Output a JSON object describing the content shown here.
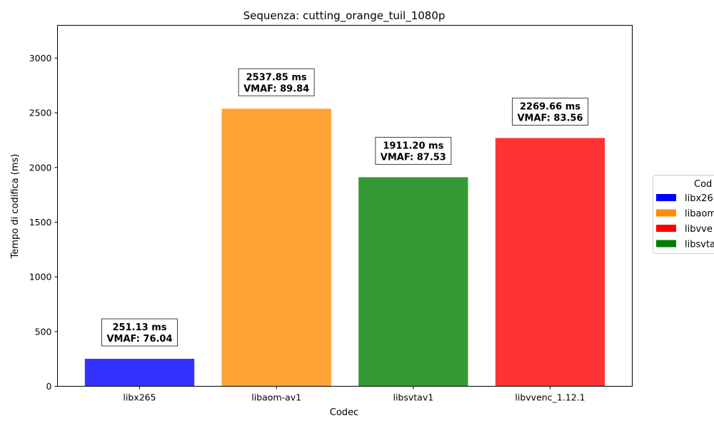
{
  "chart_data": {
    "type": "bar",
    "title": "Sequenza: cutting_orange_tuil_1080p",
    "xlabel": "Codec",
    "ylabel": "Tempo di codifica (ms)",
    "ylim": [
      0,
      3300
    ],
    "yticks": [
      0,
      500,
      1000,
      1500,
      2000,
      2500,
      3000
    ],
    "categories": [
      "libx265",
      "libaom-av1",
      "libsvtav1",
      "libvvenc_1.12.1"
    ],
    "values": [
      251.13,
      2537.85,
      1911.2,
      2269.66
    ],
    "value_labels": [
      "251.13 ms",
      "2537.85 ms",
      "1911.20 ms",
      "2269.66 ms"
    ],
    "vmaf_labels": [
      "VMAF: 76.04",
      "VMAF: 89.84",
      "VMAF: 87.53",
      "VMAF: 83.56"
    ],
    "bar_colors": [
      "#3333ff",
      "#ffa333",
      "#339933",
      "#ff3333"
    ],
    "grid": false,
    "legend": {
      "placement": "right",
      "title": "Cod",
      "entries": [
        {
          "label": "libx26",
          "color": "#0000ff"
        },
        {
          "label": "libaom",
          "color": "#ff8c00"
        },
        {
          "label": "libvve",
          "color": "#ff0000"
        },
        {
          "label": "libsvta",
          "color": "#008000"
        }
      ]
    }
  }
}
